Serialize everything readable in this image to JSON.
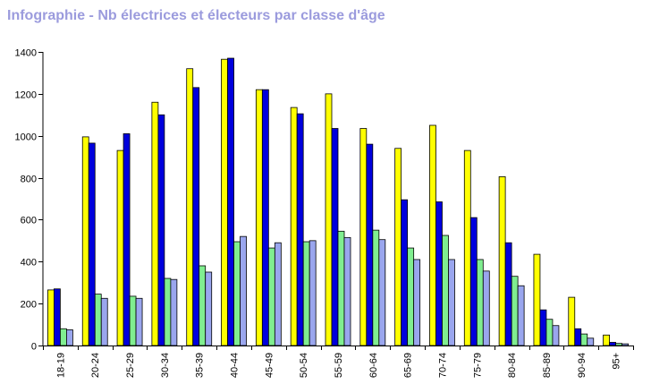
{
  "title": "Infographie - Nb électrices et électeurs par classe d'âge",
  "chart_data": {
    "type": "bar",
    "title": "Infographie - Nb électrices et électeurs par classe d'âge",
    "xlabel": "",
    "ylabel": "",
    "ylim": [
      0,
      1400
    ],
    "yticks": [
      0,
      200,
      400,
      600,
      800,
      1000,
      1200,
      1400
    ],
    "grid": false,
    "legend": "none",
    "categories": [
      "18-19",
      "20-24",
      "25-29",
      "30-34",
      "35-39",
      "40-44",
      "45-49",
      "50-54",
      "55-59",
      "60-64",
      "65-69",
      "70-74",
      "75-79",
      "80-84",
      "85-89",
      "90-94",
      "95+"
    ],
    "series": [
      {
        "color": "#ffff00",
        "values": [
          265,
          995,
          930,
          1160,
          1320,
          1365,
          1220,
          1135,
          1200,
          1035,
          940,
          1050,
          930,
          805,
          435,
          230,
          50
        ]
      },
      {
        "color": "#0000dd",
        "values": [
          270,
          965,
          1010,
          1100,
          1230,
          1370,
          1220,
          1105,
          1035,
          960,
          695,
          685,
          610,
          490,
          170,
          80,
          15
        ]
      },
      {
        "color": "#80ee90",
        "values": [
          80,
          245,
          235,
          320,
          380,
          495,
          465,
          495,
          545,
          550,
          465,
          525,
          410,
          330,
          125,
          55,
          10
        ]
      },
      {
        "color": "#9aa6ee",
        "values": [
          75,
          225,
          225,
          315,
          350,
          520,
          490,
          500,
          515,
          505,
          410,
          410,
          355,
          285,
          95,
          35,
          8
        ]
      }
    ]
  }
}
